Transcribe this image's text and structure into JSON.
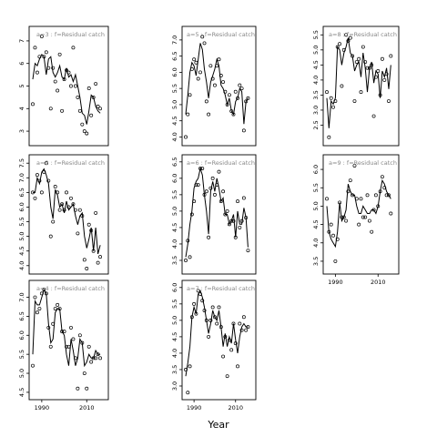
{
  "chart_data": {
    "type": "line",
    "xlabel": "Year",
    "x_ticks": [
      1990,
      2010
    ],
    "xlim": [
      1986,
      2018
    ],
    "panels": [
      {
        "label": "a=3 : f=Residual catch",
        "ylim": [
          2.6,
          7.4
        ],
        "yticks": [
          3,
          4,
          5,
          6,
          7
        ],
        "years": [
          1986,
          1987,
          1988,
          1989,
          1990,
          1991,
          1992,
          1993,
          1994,
          1995,
          1996,
          1997,
          1998,
          1999,
          2000,
          2001,
          2002,
          2003,
          2004,
          2005,
          2006,
          2007,
          2008,
          2009,
          2010,
          2011,
          2012,
          2013,
          2014,
          2015,
          2016
        ],
        "fitted": [
          5.3,
          6.0,
          5.9,
          6.2,
          6.4,
          6.3,
          5.5,
          6.2,
          6.3,
          5.6,
          5.4,
          5.6,
          5.9,
          5.4,
          5.3,
          5.8,
          5.4,
          5.5,
          5.2,
          5.5,
          5.0,
          4.5,
          3.8,
          3.7,
          3.3,
          3.9,
          4.6,
          4.5,
          4.1,
          3.9,
          3.8
        ],
        "observed": [
          4.2,
          6.7,
          5.6,
          6.3,
          7.2,
          6.3,
          6.5,
          5.8,
          4.0,
          5.8,
          5.2,
          4.8,
          6.4,
          3.9,
          5.3,
          5.7,
          5.6,
          5.0,
          6.7,
          5.0,
          4.5,
          3.9,
          3.3,
          3.0,
          2.9,
          4.9,
          3.7,
          4.5,
          5.1,
          4.1,
          4.0
        ]
      },
      {
        "label": "a=5 : f=Residual catch",
        "ylim": [
          3.9,
          7.25
        ],
        "yticks": [
          4.0,
          4.5,
          5.0,
          5.5,
          6.0,
          6.5,
          7.0
        ],
        "years": [
          1986,
          1987,
          1988,
          1989,
          1990,
          1991,
          1992,
          1993,
          1994,
          1995,
          1996,
          1997,
          1998,
          1999,
          2000,
          2001,
          2002,
          2003,
          2004,
          2005,
          2006,
          2007,
          2008,
          2009,
          2010,
          2011,
          2012,
          2013,
          2014,
          2015,
          2016
        ],
        "fitted": [
          4.7,
          5.3,
          6.0,
          6.3,
          6.2,
          5.9,
          6.4,
          6.9,
          6.7,
          6.1,
          5.7,
          5.2,
          5.7,
          5.9,
          6.1,
          6.4,
          6.2,
          5.6,
          5.5,
          5.3,
          5.0,
          5.2,
          4.8,
          4.7,
          5.1,
          5.2,
          5.5,
          5.4,
          4.4,
          5.1,
          5.2
        ],
        "observed": [
          4.0,
          4.7,
          5.3,
          6.1,
          6.4,
          6.3,
          5.8,
          6.0,
          7.1,
          6.9,
          5.1,
          4.7,
          6.2,
          5.8,
          5.6,
          6.2,
          6.4,
          5.9,
          5.7,
          5.4,
          5.0,
          5.3,
          4.8,
          4.7,
          5.4,
          5.2,
          5.6,
          5.5,
          4.2,
          5.1,
          5.2
        ]
      },
      {
        "label": "a=8 : f=Residual catch",
        "ylim": [
          2.0,
          5.6
        ],
        "yticks": [
          2.5,
          3.0,
          3.5,
          4.0,
          4.5,
          5.0,
          5.5
        ],
        "years": [
          1986,
          1987,
          1988,
          1989,
          1990,
          1991,
          1992,
          1993,
          1994,
          1995,
          1996,
          1997,
          1998,
          1999,
          2000,
          2001,
          2002,
          2003,
          2004,
          2005,
          2006,
          2007,
          2008,
          2009,
          2010,
          2011,
          2012,
          2013,
          2014,
          2015,
          2016
        ],
        "fitted": [
          3.4,
          2.4,
          3.3,
          3.2,
          3.4,
          5.1,
          5.0,
          4.5,
          4.9,
          5.1,
          5.4,
          4.9,
          4.8,
          4.3,
          4.5,
          4.6,
          4.1,
          4.9,
          4.4,
          3.6,
          4.4,
          4.6,
          3.9,
          4.3,
          4.2,
          3.4,
          4.3,
          4.1,
          4.4,
          3.7,
          4.5
        ],
        "observed": [
          3.6,
          2.1,
          3.4,
          3.1,
          3.3,
          5.1,
          5.2,
          3.8,
          5.0,
          5.5,
          5.3,
          5.4,
          4.8,
          3.3,
          4.6,
          4.7,
          3.6,
          5.1,
          4.6,
          4.4,
          4.4,
          4.5,
          2.8,
          4.1,
          4.3,
          3.5,
          4.7,
          4.0,
          4.2,
          3.3,
          4.8
        ]
      },
      {
        "label": "a=2 : f=Residual catch",
        "ylim": [
          3.9,
          7.6
        ],
        "yticks": [
          4.0,
          4.5,
          5.0,
          5.5,
          6.0,
          6.5,
          7.0,
          7.5
        ],
        "years": [
          1986,
          1987,
          1988,
          1989,
          1990,
          1991,
          1992,
          1993,
          1994,
          1995,
          1996,
          1997,
          1998,
          1999,
          2000,
          2001,
          2002,
          2003,
          2004,
          2005,
          2006,
          2007,
          2008,
          2009,
          2010,
          2011,
          2012,
          2013,
          2014,
          2015,
          2016
        ],
        "fitted": [
          6.5,
          6.5,
          7.0,
          6.8,
          7.2,
          7.3,
          7.1,
          6.8,
          6.0,
          5.6,
          6.6,
          6.4,
          6.0,
          6.1,
          5.8,
          6.2,
          5.9,
          6.0,
          6.1,
          5.7,
          5.4,
          5.7,
          5.8,
          5.0,
          4.6,
          4.9,
          5.3,
          4.5,
          5.3,
          4.4,
          4.7
        ],
        "observed": [
          6.5,
          6.3,
          7.1,
          6.9,
          6.5,
          7.2,
          7.5,
          6.9,
          5.0,
          5.5,
          6.7,
          6.5,
          5.9,
          6.1,
          5.9,
          6.5,
          6.0,
          6.3,
          6.1,
          5.9,
          5.1,
          5.9,
          5.7,
          4.2,
          3.9,
          5.4,
          5.2,
          4.5,
          5.8,
          4.1,
          4.3
        ]
      },
      {
        "label": "a=6 : f=Residual catch",
        "ylim": [
          3.25,
          6.55
        ],
        "yticks": [
          3.5,
          4.0,
          4.5,
          5.0,
          5.5,
          6.0,
          6.5
        ],
        "years": [
          1986,
          1987,
          1988,
          1989,
          1990,
          1991,
          1992,
          1993,
          1994,
          1995,
          1996,
          1997,
          1998,
          1999,
          2000,
          2001,
          2002,
          2003,
          2004,
          2005,
          2006,
          2007,
          2008,
          2009,
          2010,
          2011,
          2012,
          2013,
          2014,
          2015,
          2016
        ],
        "fitted": [
          3.6,
          4.0,
          4.6,
          5.0,
          5.7,
          5.9,
          6.0,
          6.3,
          6.1,
          5.5,
          5.0,
          4.3,
          5.6,
          5.9,
          5.6,
          6.0,
          5.7,
          5.3,
          5.4,
          4.9,
          4.9,
          4.6,
          4.7,
          4.9,
          4.2,
          5.0,
          4.6,
          4.6,
          5.1,
          4.8,
          3.9
        ],
        "observed": [
          3.5,
          4.1,
          3.6,
          4.9,
          5.3,
          5.8,
          5.8,
          6.3,
          6.3,
          5.5,
          5.6,
          4.2,
          5.7,
          6.0,
          5.5,
          5.8,
          6.2,
          5.3,
          5.6,
          4.9,
          5.0,
          4.6,
          4.7,
          4.7,
          4.2,
          5.3,
          4.5,
          4.7,
          5.4,
          4.8,
          3.8
        ]
      },
      {
        "label": "a=9 : f=Residual catch",
        "ylim": [
          3.3,
          6.25
        ],
        "yticks": [
          3.5,
          4.0,
          4.5,
          5.0,
          5.5,
          6.0
        ],
        "years": [
          1986,
          1987,
          1988,
          1989,
          1990,
          1991,
          1992,
          1993,
          1994,
          1995,
          1996,
          1997,
          1998,
          1999,
          2000,
          2001,
          2002,
          2003,
          2004,
          2005,
          2006,
          2007,
          2008,
          2009,
          2010,
          2011,
          2012,
          2013,
          2014,
          2015,
          2016
        ],
        "fitted": [
          5.0,
          4.3,
          4.1,
          4.0,
          3.9,
          4.3,
          5.1,
          4.6,
          4.7,
          4.9,
          5.6,
          5.4,
          5.3,
          5.3,
          5.0,
          4.8,
          4.8,
          5.0,
          4.9,
          4.8,
          4.8,
          4.9,
          4.9,
          4.8,
          5.0,
          5.4,
          5.7,
          5.6,
          5.4,
          5.3,
          5.2
        ],
        "observed": [
          5.2,
          4.3,
          4.5,
          4.2,
          3.5,
          4.1,
          5.1,
          4.7,
          4.7,
          4.6,
          5.4,
          5.7,
          5.3,
          6.1,
          5.2,
          4.5,
          5.2,
          4.7,
          4.7,
          5.3,
          4.6,
          4.3,
          4.9,
          5.3,
          5.0,
          5.4,
          5.8,
          5.5,
          5.3,
          5.3,
          4.8
        ]
      },
      {
        "label": "a=4 : f=Residual catch",
        "ylim": [
          4.45,
          7.3
        ],
        "yticks": [
          4.5,
          5.0,
          5.5,
          6.0,
          6.5,
          7.0
        ],
        "years": [
          1986,
          1987,
          1988,
          1989,
          1990,
          1991,
          1992,
          1993,
          1994,
          1995,
          1996,
          1997,
          1998,
          1999,
          2000,
          2001,
          2002,
          2003,
          2004,
          2005,
          2006,
          2007,
          2008,
          2009,
          2010,
          2011,
          2012,
          2013,
          2014,
          2015,
          2016
        ],
        "fitted": [
          5.5,
          6.9,
          6.8,
          6.8,
          7.0,
          7.2,
          7.1,
          6.3,
          5.8,
          5.9,
          6.6,
          6.7,
          6.7,
          6.1,
          6.0,
          5.5,
          5.2,
          5.9,
          5.6,
          5.2,
          5.4,
          5.9,
          5.8,
          5.2,
          5.3,
          5.5,
          5.4,
          5.4,
          5.6,
          5.5,
          5.5
        ],
        "observed": [
          5.2,
          7.0,
          6.6,
          6.7,
          7.1,
          7.2,
          7.1,
          6.2,
          5.7,
          6.3,
          6.7,
          6.8,
          6.7,
          6.1,
          6.1,
          5.7,
          5.7,
          6.2,
          5.9,
          5.4,
          4.6,
          6.0,
          5.8,
          5.0,
          4.6,
          5.7,
          5.3,
          5.4,
          5.4,
          5.5,
          5.4
        ]
      },
      {
        "label": "a=7 : f=Residual catch",
        "ylim": [
          2.75,
          6.05
        ],
        "yticks": [
          3.0,
          3.5,
          4.0,
          4.5,
          5.0,
          5.5,
          6.0
        ],
        "years": [
          1986,
          1987,
          1988,
          1989,
          1990,
          1991,
          1992,
          1993,
          1994,
          1995,
          1996,
          1997,
          1998,
          1999,
          2000,
          2001,
          2002,
          2003,
          2004,
          2005,
          2006,
          2007,
          2008,
          2009,
          2010,
          2011,
          2012,
          2013,
          2014,
          2015,
          2016
        ],
        "fitted": [
          3.3,
          3.7,
          4.2,
          5.1,
          5.4,
          5.2,
          5.8,
          5.9,
          5.7,
          5.4,
          5.0,
          4.6,
          4.9,
          5.3,
          5.1,
          5.0,
          5.3,
          4.8,
          4.2,
          4.6,
          4.2,
          4.5,
          4.3,
          4.9,
          4.4,
          4.0,
          4.5,
          4.8,
          4.9,
          4.8,
          4.8
        ],
        "observed": [
          3.5,
          2.8,
          3.6,
          5.1,
          5.5,
          5.2,
          5.9,
          5.8,
          5.6,
          5.3,
          5.0,
          4.5,
          5.0,
          5.4,
          5.1,
          4.9,
          5.4,
          4.8,
          3.9,
          4.5,
          3.3,
          4.4,
          4.1,
          4.9,
          4.3,
          3.6,
          4.9,
          4.7,
          5.1,
          4.7,
          4.8
        ]
      }
    ]
  }
}
